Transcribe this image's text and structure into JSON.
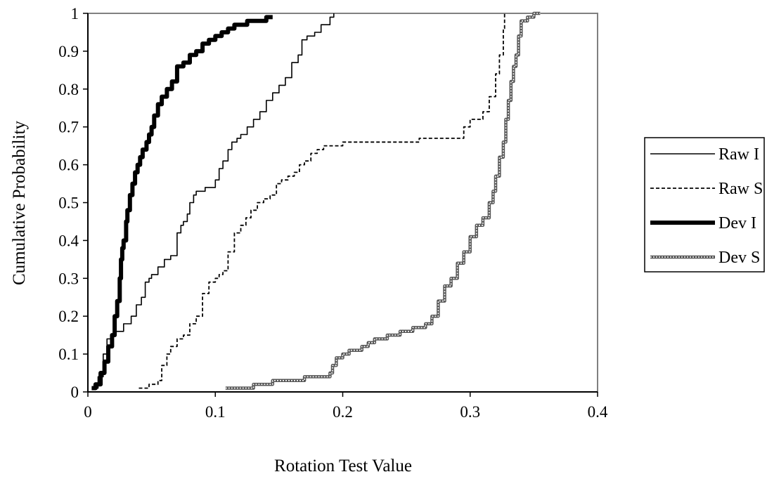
{
  "chart_data": {
    "type": "line",
    "title": "",
    "xlabel": "Rotation Test Value",
    "ylabel": "Cumulative Probability",
    "xlim": [
      0,
      0.4
    ],
    "ylim": [
      0,
      1
    ],
    "x_ticks": [
      "0",
      "0.1",
      "0.2",
      "0.3",
      "0.4"
    ],
    "y_ticks": [
      "0",
      "0.1",
      "0.2",
      "0.3",
      "0.4",
      "0.5",
      "0.6",
      "0.7",
      "0.8",
      "0.9",
      "1"
    ],
    "grid": false,
    "legend_position": "right",
    "series": [
      {
        "name": "Raw I",
        "style": "solid-thin",
        "color": "#000000",
        "x": [
          0.003,
          0.008,
          0.012,
          0.015,
          0.018,
          0.022,
          0.028,
          0.034,
          0.038,
          0.042,
          0.045,
          0.048,
          0.05,
          0.055,
          0.06,
          0.065,
          0.07,
          0.073,
          0.075,
          0.078,
          0.08,
          0.083,
          0.085,
          0.088,
          0.092,
          0.097,
          0.1,
          0.103,
          0.106,
          0.11,
          0.113,
          0.117,
          0.12,
          0.125,
          0.13,
          0.135,
          0.14,
          0.145,
          0.15,
          0.155,
          0.16,
          0.165,
          0.168,
          0.172,
          0.178,
          0.183,
          0.19,
          0.193
        ],
        "y": [
          0.01,
          0.04,
          0.1,
          0.14,
          0.15,
          0.16,
          0.18,
          0.2,
          0.23,
          0.25,
          0.29,
          0.3,
          0.31,
          0.33,
          0.35,
          0.36,
          0.42,
          0.44,
          0.45,
          0.47,
          0.5,
          0.52,
          0.53,
          0.53,
          0.54,
          0.54,
          0.56,
          0.59,
          0.61,
          0.64,
          0.66,
          0.67,
          0.68,
          0.7,
          0.72,
          0.74,
          0.77,
          0.79,
          0.81,
          0.83,
          0.87,
          0.89,
          0.93,
          0.94,
          0.95,
          0.97,
          0.99,
          1.0
        ]
      },
      {
        "name": "Raw S",
        "style": "dashed",
        "color": "#000000",
        "x": [
          0.04,
          0.048,
          0.055,
          0.058,
          0.062,
          0.065,
          0.07,
          0.075,
          0.08,
          0.085,
          0.09,
          0.095,
          0.1,
          0.103,
          0.106,
          0.11,
          0.115,
          0.12,
          0.124,
          0.128,
          0.133,
          0.138,
          0.143,
          0.148,
          0.152,
          0.157,
          0.162,
          0.166,
          0.17,
          0.175,
          0.18,
          0.185,
          0.2,
          0.22,
          0.26,
          0.29,
          0.295,
          0.3,
          0.31,
          0.315,
          0.32,
          0.323,
          0.326,
          0.327
        ],
        "y": [
          0.01,
          0.02,
          0.03,
          0.07,
          0.1,
          0.12,
          0.14,
          0.15,
          0.18,
          0.2,
          0.26,
          0.29,
          0.3,
          0.31,
          0.32,
          0.37,
          0.42,
          0.44,
          0.46,
          0.48,
          0.5,
          0.51,
          0.52,
          0.55,
          0.56,
          0.57,
          0.58,
          0.6,
          0.61,
          0.63,
          0.64,
          0.65,
          0.66,
          0.66,
          0.67,
          0.67,
          0.7,
          0.72,
          0.74,
          0.78,
          0.84,
          0.89,
          0.96,
          1.0
        ]
      },
      {
        "name": "Dev I",
        "style": "solid-thick",
        "color": "#000000",
        "x": [
          0.003,
          0.006,
          0.01,
          0.013,
          0.016,
          0.019,
          0.021,
          0.023,
          0.025,
          0.026,
          0.027,
          0.028,
          0.03,
          0.031,
          0.033,
          0.035,
          0.037,
          0.039,
          0.041,
          0.043,
          0.046,
          0.048,
          0.05,
          0.052,
          0.055,
          0.058,
          0.062,
          0.066,
          0.07,
          0.075,
          0.08,
          0.085,
          0.09,
          0.095,
          0.1,
          0.105,
          0.11,
          0.115,
          0.12,
          0.125,
          0.13,
          0.135,
          0.14,
          0.145
        ],
        "y": [
          0.01,
          0.02,
          0.05,
          0.08,
          0.12,
          0.15,
          0.2,
          0.24,
          0.3,
          0.35,
          0.38,
          0.4,
          0.45,
          0.48,
          0.52,
          0.55,
          0.58,
          0.6,
          0.62,
          0.64,
          0.66,
          0.68,
          0.7,
          0.73,
          0.76,
          0.78,
          0.8,
          0.82,
          0.86,
          0.87,
          0.89,
          0.9,
          0.92,
          0.93,
          0.94,
          0.95,
          0.96,
          0.97,
          0.97,
          0.98,
          0.98,
          0.98,
          0.99,
          0.99
        ]
      },
      {
        "name": "Dev S",
        "style": "double-hatched",
        "color": "#555555",
        "x": [
          0.108,
          0.12,
          0.13,
          0.14,
          0.145,
          0.15,
          0.16,
          0.17,
          0.18,
          0.19,
          0.192,
          0.195,
          0.2,
          0.205,
          0.21,
          0.215,
          0.22,
          0.225,
          0.23,
          0.235,
          0.24,
          0.245,
          0.25,
          0.255,
          0.26,
          0.265,
          0.27,
          0.275,
          0.28,
          0.285,
          0.29,
          0.295,
          0.3,
          0.305,
          0.31,
          0.315,
          0.318,
          0.32,
          0.323,
          0.326,
          0.328,
          0.33,
          0.332,
          0.334,
          0.336,
          0.338,
          0.34,
          0.345,
          0.35,
          0.355
        ],
        "y": [
          0.01,
          0.01,
          0.02,
          0.02,
          0.03,
          0.03,
          0.03,
          0.04,
          0.04,
          0.05,
          0.07,
          0.09,
          0.1,
          0.11,
          0.11,
          0.12,
          0.13,
          0.14,
          0.14,
          0.15,
          0.15,
          0.16,
          0.16,
          0.17,
          0.17,
          0.18,
          0.2,
          0.24,
          0.28,
          0.3,
          0.34,
          0.37,
          0.41,
          0.44,
          0.46,
          0.5,
          0.53,
          0.57,
          0.62,
          0.66,
          0.72,
          0.77,
          0.82,
          0.86,
          0.89,
          0.94,
          0.98,
          0.99,
          1.0,
          1.0
        ]
      }
    ]
  }
}
